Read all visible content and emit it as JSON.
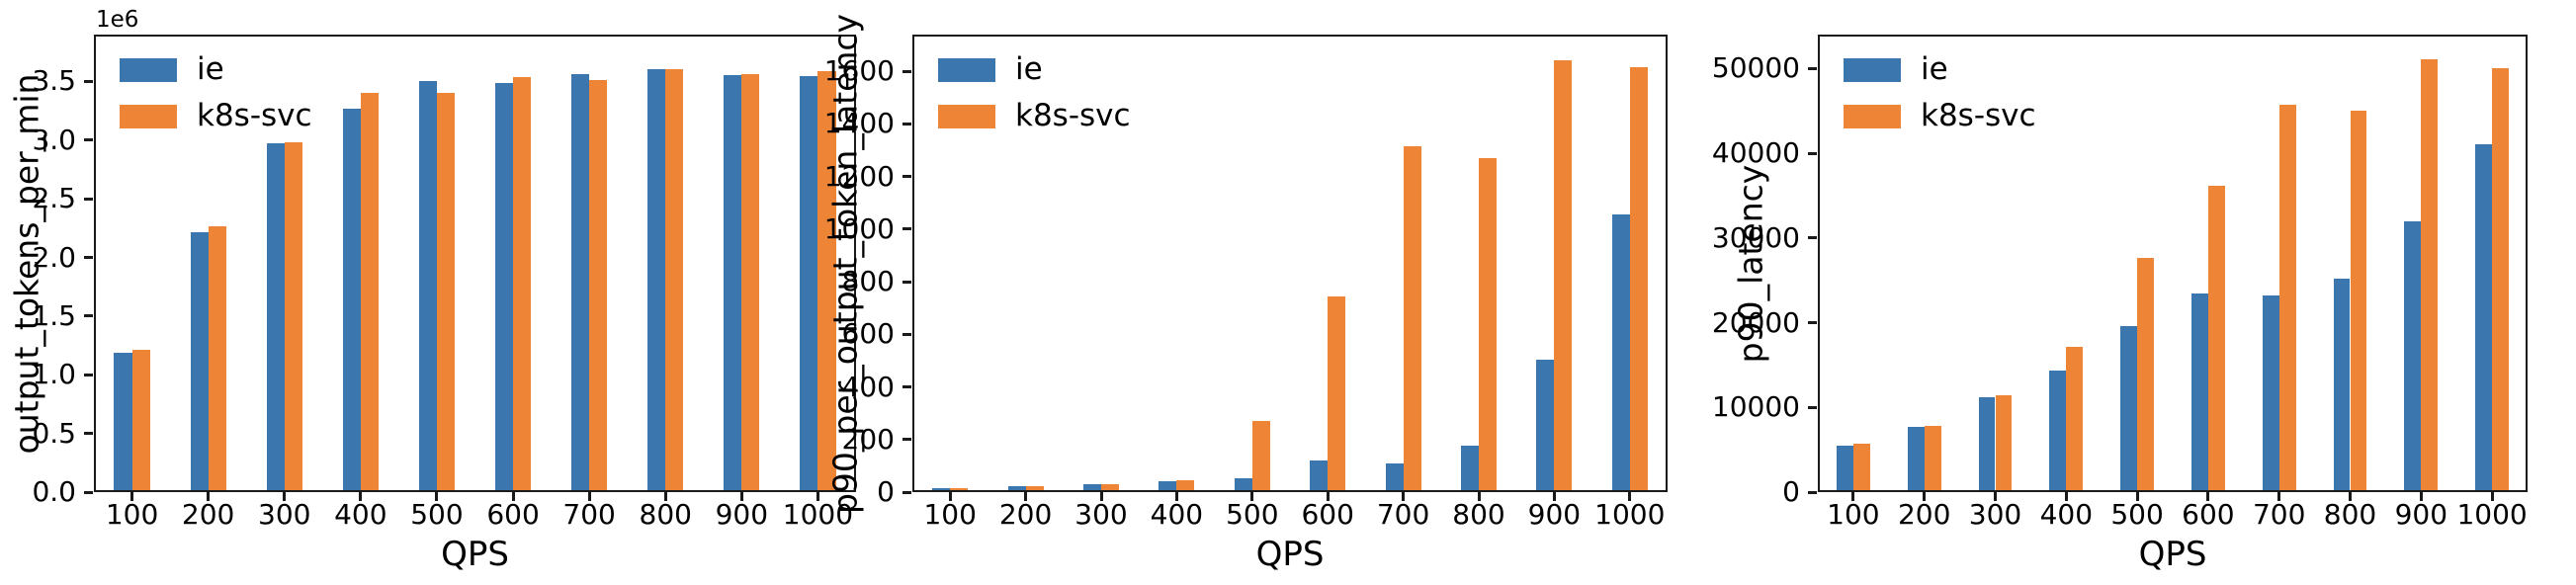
{
  "figure": {
    "background": "#ffffff",
    "axis_color": "#1a1a1a",
    "text_color": "#000000"
  },
  "legend": {
    "entries": [
      "ie",
      "k8s-svc"
    ]
  },
  "chart_data": [
    {
      "type": "bar",
      "title": "",
      "xlabel": "QPS",
      "ylabel": "output_tokens_per_min",
      "y_offset_text": "1e6",
      "grid": false,
      "legend_position": "upper left",
      "categories": [
        "100",
        "200",
        "300",
        "400",
        "500",
        "600",
        "700",
        "800",
        "900",
        "1000"
      ],
      "series": [
        {
          "name": "ie",
          "color": "#3b76af",
          "values": [
            1180000,
            2220000,
            2980000,
            3280000,
            3520000,
            3500000,
            3580000,
            3620000,
            3570000,
            3560000
          ]
        },
        {
          "name": "k8s-svc",
          "color": "#ee8536",
          "values": [
            1210000,
            2270000,
            2990000,
            3420000,
            3420000,
            3550000,
            3530000,
            3620000,
            3580000,
            3600000
          ]
        }
      ],
      "ylim": [
        0,
        3900000
      ],
      "yticks": [
        0,
        500000,
        1000000,
        1500000,
        2000000,
        2500000,
        3000000,
        3500000
      ],
      "ytick_labels": [
        "0.0",
        "0.5",
        "1.0",
        "1.5",
        "2.0",
        "2.5",
        "3.0",
        "3.5"
      ]
    },
    {
      "type": "bar",
      "title": "",
      "xlabel": "QPS",
      "ylabel": "p90_per_output_token_latency",
      "grid": false,
      "legend_position": "upper left",
      "categories": [
        "100",
        "200",
        "300",
        "400",
        "500",
        "600",
        "700",
        "800",
        "900",
        "1000"
      ],
      "series": [
        {
          "name": "ie",
          "color": "#3b76af",
          "values": [
            8,
            15,
            22,
            33,
            46,
            113,
            103,
            170,
            500,
            1057
          ]
        },
        {
          "name": "k8s-svc",
          "color": "#ee8536",
          "values": [
            9,
            16,
            22,
            37,
            264,
            744,
            1321,
            1275,
            1650,
            1623
          ]
        }
      ],
      "ylim": [
        0,
        1740
      ],
      "yticks": [
        0,
        200,
        400,
        600,
        800,
        1000,
        1200,
        1400,
        1600
      ],
      "ytick_labels": [
        "0",
        "200",
        "400",
        "600",
        "800",
        "1000",
        "1200",
        "1400",
        "1600"
      ]
    },
    {
      "type": "bar",
      "title": "",
      "xlabel": "QPS",
      "ylabel": "p90_latency",
      "grid": false,
      "legend_position": "upper left",
      "categories": [
        "100",
        "200",
        "300",
        "400",
        "500",
        "600",
        "700",
        "800",
        "900",
        "1000"
      ],
      "series": [
        {
          "name": "ie",
          "color": "#3b76af",
          "values": [
            5300,
            7500,
            11100,
            14200,
            19500,
            23400,
            23200,
            25200,
            32000,
            41200
          ]
        },
        {
          "name": "k8s-svc",
          "color": "#ee8536",
          "values": [
            5500,
            7700,
            11300,
            17100,
            27700,
            36200,
            45900,
            45200,
            51300,
            50200
          ]
        }
      ],
      "ylim": [
        0,
        54000
      ],
      "yticks": [
        0,
        10000,
        20000,
        30000,
        40000,
        50000
      ],
      "ytick_labels": [
        "0",
        "10000",
        "20000",
        "30000",
        "40000",
        "50000"
      ]
    }
  ]
}
